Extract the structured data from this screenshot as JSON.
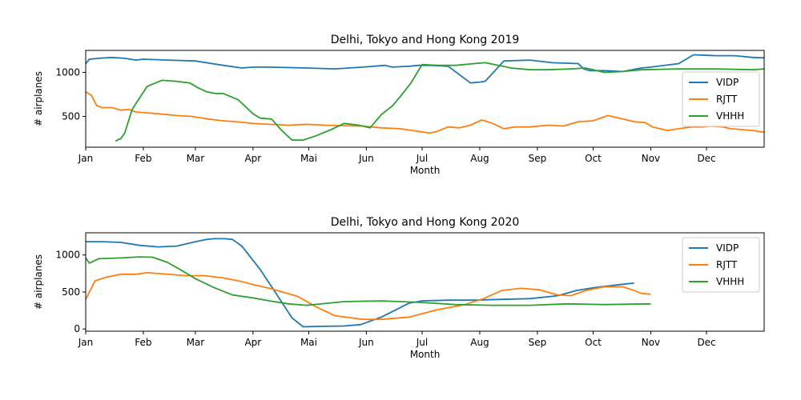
{
  "chart_data": [
    {
      "type": "line",
      "title": "Delhi, Tokyo and Hong Kong 2019",
      "xlabel": "Month",
      "ylabel": "# airplanes",
      "x_unit": "day_of_year",
      "xlim": [
        1,
        366
      ],
      "ylim": [
        150,
        1250
      ],
      "yticks": [
        500,
        1000
      ],
      "xticks": [
        {
          "day": 1,
          "label": "Jan"
        },
        {
          "day": 32,
          "label": "Feb"
        },
        {
          "day": 60,
          "label": "Mar"
        },
        {
          "day": 91,
          "label": "Apr"
        },
        {
          "day": 121,
          "label": "Mai"
        },
        {
          "day": 152,
          "label": "Jun"
        },
        {
          "day": 182,
          "label": "Jul"
        },
        {
          "day": 213,
          "label": "Aug"
        },
        {
          "day": 244,
          "label": "Sep"
        },
        {
          "day": 274,
          "label": "Oct"
        },
        {
          "day": 305,
          "label": "Nov"
        },
        {
          "day": 335,
          "label": "Dec"
        }
      ],
      "legend": {
        "placement": "right",
        "entries": [
          "VIDP",
          "RJTT",
          "VHHH"
        ]
      },
      "grid": false,
      "series": [
        {
          "name": "VIDP",
          "color": "#1f77b4",
          "x": [
            1,
            3,
            8,
            15,
            22,
            28,
            32,
            45,
            60,
            75,
            85,
            91,
            100,
            120,
            135,
            150,
            162,
            166,
            175,
            180,
            186,
            196,
            208,
            213,
            216,
            226,
            240,
            252,
            266,
            269,
            272,
            280,
            290,
            300,
            305,
            320,
            328,
            340,
            350,
            360,
            366
          ],
          "y": [
            1100,
            1150,
            1160,
            1170,
            1160,
            1140,
            1150,
            1140,
            1130,
            1080,
            1050,
            1060,
            1060,
            1050,
            1040,
            1060,
            1080,
            1060,
            1070,
            1080,
            1080,
            1070,
            880,
            890,
            900,
            1130,
            1140,
            1110,
            1100,
            1040,
            1020,
            1020,
            1010,
            1050,
            1060,
            1100,
            1200,
            1190,
            1190,
            1170,
            1165
          ]
        },
        {
          "name": "RJTT",
          "color": "#ff7f0e",
          "x": [
            1,
            4,
            7,
            10,
            15,
            20,
            24,
            28,
            34,
            40,
            50,
            58,
            67,
            75,
            82,
            91,
            100,
            110,
            120,
            130,
            140,
            150,
            160,
            170,
            180,
            186,
            190,
            196,
            202,
            208,
            214,
            220,
            226,
            232,
            240,
            250,
            258,
            266,
            274,
            282,
            290,
            296,
            302,
            306,
            314,
            320,
            327,
            333,
            337,
            344,
            348,
            354,
            360,
            366
          ],
          "y": [
            780,
            740,
            620,
            600,
            600,
            570,
            580,
            550,
            540,
            530,
            510,
            500,
            470,
            450,
            440,
            420,
            410,
            400,
            410,
            400,
            395,
            390,
            370,
            360,
            330,
            310,
            330,
            380,
            370,
            400,
            460,
            420,
            360,
            380,
            380,
            400,
            390,
            440,
            450,
            510,
            470,
            440,
            430,
            380,
            340,
            360,
            380,
            380,
            390,
            380,
            360,
            350,
            340,
            320
          ]
        },
        {
          "name": "VHHH",
          "color": "#2ca02c",
          "x": [
            17,
            20,
            22,
            26,
            34,
            42,
            49,
            57,
            61,
            66,
            71,
            75,
            83,
            91,
            95,
            101,
            106,
            112,
            118,
            125,
            133,
            140,
            148,
            154,
            160,
            166,
            170,
            176,
            182,
            190,
            200,
            210,
            216,
            230,
            240,
            250,
            262,
            270,
            280,
            290,
            300,
            320,
            340,
            360,
            366
          ],
          "y": [
            220,
            250,
            310,
            580,
            840,
            910,
            900,
            880,
            830,
            780,
            760,
            760,
            690,
            530,
            480,
            470,
            350,
            230,
            230,
            280,
            350,
            420,
            400,
            370,
            520,
            620,
            720,
            880,
            1090,
            1080,
            1080,
            1100,
            1110,
            1050,
            1030,
            1030,
            1040,
            1050,
            1000,
            1010,
            1030,
            1040,
            1040,
            1030,
            1040
          ]
        }
      ]
    },
    {
      "type": "line",
      "title": "Delhi, Tokyo and Hong Kong 2020",
      "xlabel": "Month",
      "ylabel": "# airplanes",
      "x_unit": "day_of_year",
      "xlim": [
        1,
        366
      ],
      "ylim": [
        -30,
        1300
      ],
      "yticks": [
        0,
        500,
        1000
      ],
      "xticks": [
        {
          "day": 1,
          "label": "Jan"
        },
        {
          "day": 32,
          "label": "Feb"
        },
        {
          "day": 60,
          "label": "Mar"
        },
        {
          "day": 91,
          "label": "Apr"
        },
        {
          "day": 121,
          "label": "Mai"
        },
        {
          "day": 152,
          "label": "Jun"
        },
        {
          "day": 182,
          "label": "Jul"
        },
        {
          "day": 213,
          "label": "Aug"
        },
        {
          "day": 244,
          "label": "Sep"
        },
        {
          "day": 274,
          "label": "Oct"
        },
        {
          "day": 305,
          "label": "Nov"
        },
        {
          "day": 335,
          "label": "Dec"
        }
      ],
      "legend": {
        "placement": "top-right",
        "entries": [
          "VIDP",
          "RJTT",
          "VHHH"
        ]
      },
      "grid": false,
      "series": [
        {
          "name": "VIDP",
          "color": "#1f77b4",
          "x": [
            1,
            10,
            20,
            30,
            40,
            50,
            60,
            66,
            70,
            76,
            80,
            85,
            95,
            105,
            112,
            118,
            125,
            140,
            149,
            160,
            175,
            182,
            196,
            210,
            225,
            240,
            255,
            265,
            275,
            285,
            292,
            296
          ],
          "y": [
            1180,
            1180,
            1170,
            1130,
            1110,
            1120,
            1180,
            1210,
            1220,
            1220,
            1210,
            1120,
            800,
            420,
            150,
            30,
            35,
            40,
            60,
            160,
            350,
            380,
            390,
            390,
            400,
            410,
            450,
            520,
            560,
            590,
            610,
            620
          ]
        },
        {
          "name": "RJTT",
          "color": "#ff7f0e",
          "x": [
            1,
            6,
            12,
            20,
            28,
            34,
            40,
            55,
            65,
            75,
            85,
            91,
            100,
            115,
            125,
            135,
            150,
            160,
            175,
            190,
            205,
            215,
            225,
            235,
            245,
            255,
            262,
            270,
            280,
            290,
            296,
            300,
            305
          ],
          "y": [
            400,
            650,
            700,
            740,
            740,
            760,
            750,
            720,
            720,
            690,
            640,
            600,
            550,
            440,
            300,
            180,
            130,
            130,
            160,
            260,
            330,
            410,
            520,
            550,
            530,
            460,
            450,
            520,
            570,
            570,
            520,
            480,
            470
          ]
        },
        {
          "name": "VHHH",
          "color": "#2ca02c",
          "x": [
            1,
            3,
            8,
            20,
            30,
            37,
            45,
            52,
            60,
            70,
            80,
            91,
            100,
            110,
            120,
            140,
            160,
            180,
            200,
            220,
            240,
            260,
            280,
            305
          ],
          "y": [
            960,
            890,
            950,
            960,
            975,
            970,
            900,
            800,
            680,
            560,
            460,
            420,
            380,
            340,
            320,
            370,
            380,
            360,
            330,
            320,
            320,
            340,
            330,
            340
          ]
        }
      ]
    }
  ]
}
